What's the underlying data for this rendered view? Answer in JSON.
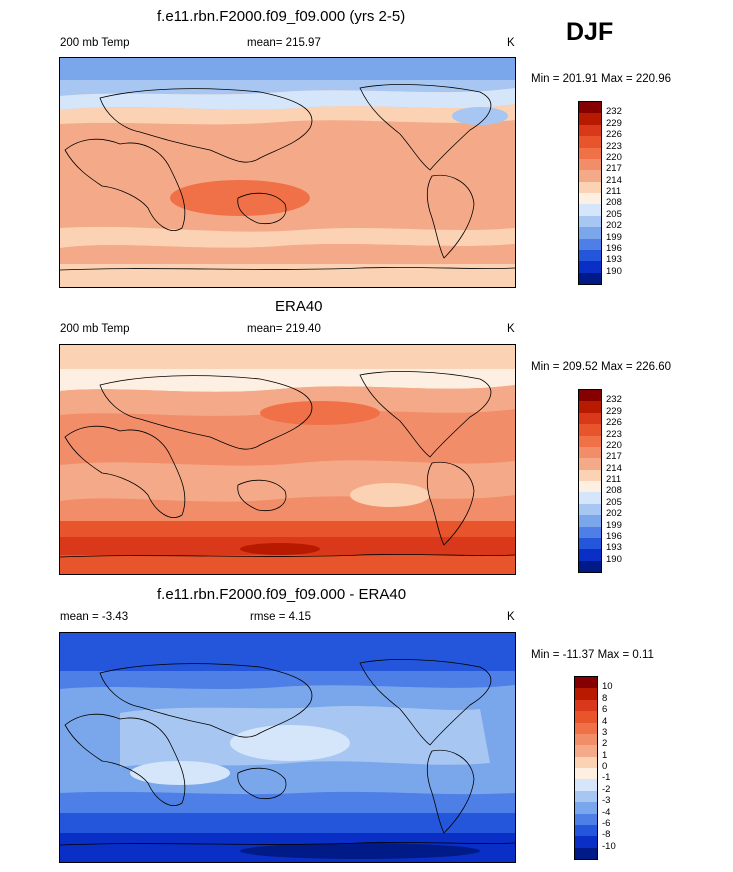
{
  "season": "DJF",
  "panels": [
    {
      "id": "model",
      "title": "f.e11.rbn.F2000.f09_f09.000 (yrs 2-5)",
      "left_label": "200 mb Temp",
      "center_label": "mean= 215.97",
      "units": "K",
      "minmax": "Min = 201.91 Max = 220.96"
    },
    {
      "id": "obs",
      "title": "ERA40",
      "left_label": "200 mb Temp",
      "center_label": "mean= 219.40",
      "units": "K",
      "minmax": "Min = 209.52 Max = 226.60"
    },
    {
      "id": "diff",
      "title": "f.e11.rbn.F2000.f09_f09.000 - ERA40",
      "left_label": "mean =  -3.43",
      "center_label": "rmse =   4.15",
      "units": "K",
      "minmax": "Min = -11.37 Max =   0.11"
    }
  ],
  "colorbars": {
    "temp": {
      "labels": [
        "232",
        "229",
        "226",
        "223",
        "220",
        "217",
        "214",
        "211",
        "208",
        "205",
        "202",
        "199",
        "196",
        "193",
        "190"
      ],
      "colors": [
        "#850000",
        "#b81a00",
        "#d9381a",
        "#e8552c",
        "#f07048",
        "#f28d6a",
        "#f4aa88",
        "#fbd2b4",
        "#fdf0e2",
        "#d6e6fa",
        "#a7c7f2",
        "#7aa6ec",
        "#4d7fe6",
        "#2456dc",
        "#0a2fc6",
        "#001b87"
      ]
    },
    "diff": {
      "labels": [
        "10",
        "8",
        "6",
        "4",
        "3",
        "2",
        "1",
        "0",
        "-1",
        "-2",
        "-3",
        "-4",
        "-6",
        "-8",
        "-10"
      ],
      "colors": [
        "#850000",
        "#b81a00",
        "#d9381a",
        "#e8552c",
        "#f07048",
        "#f28d6a",
        "#f4aa88",
        "#fbd2b4",
        "#fdf0e2",
        "#d6e6fa",
        "#a7c7f2",
        "#7aa6ec",
        "#4d7fe6",
        "#2456dc",
        "#0a2fc6",
        "#001b87"
      ]
    }
  }
}
